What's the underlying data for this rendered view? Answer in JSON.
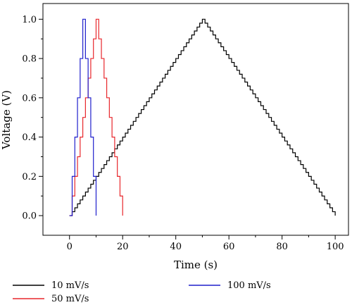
{
  "chart_data": {
    "type": "line",
    "xlabel": "Time (s)",
    "ylabel": "Voltage (V)",
    "xlim": [
      -10,
      105
    ],
    "ylim": [
      -0.1,
      1.08
    ],
    "xticks": [
      0,
      20,
      40,
      60,
      80,
      100
    ],
    "yticks": [
      0.0,
      0.2,
      0.4,
      0.6,
      0.8,
      1.0
    ],
    "xtick_labels": [
      "0",
      "20",
      "40",
      "60",
      "80",
      "100"
    ],
    "ytick_labels": [
      "0.0",
      "0.2",
      "0.4",
      "0.6",
      "0.8",
      "1.0"
    ],
    "grid": false,
    "legend_position": "bottom",
    "series": [
      {
        "name": "10 mV/s",
        "color": "#000000",
        "peak_time": 50,
        "end_time": 100,
        "peak_voltage": 1.0,
        "step_voltage": 0.02
      },
      {
        "name": "50 mV/s",
        "color": "#e8262b",
        "peak_time": 10,
        "end_time": 20,
        "peak_voltage": 1.0,
        "step_voltage": 0.1
      },
      {
        "name": "100 mV/s",
        "color": "#1f1fcc",
        "peak_time": 5,
        "end_time": 10,
        "peak_voltage": 1.0,
        "step_voltage": 0.2
      }
    ]
  }
}
